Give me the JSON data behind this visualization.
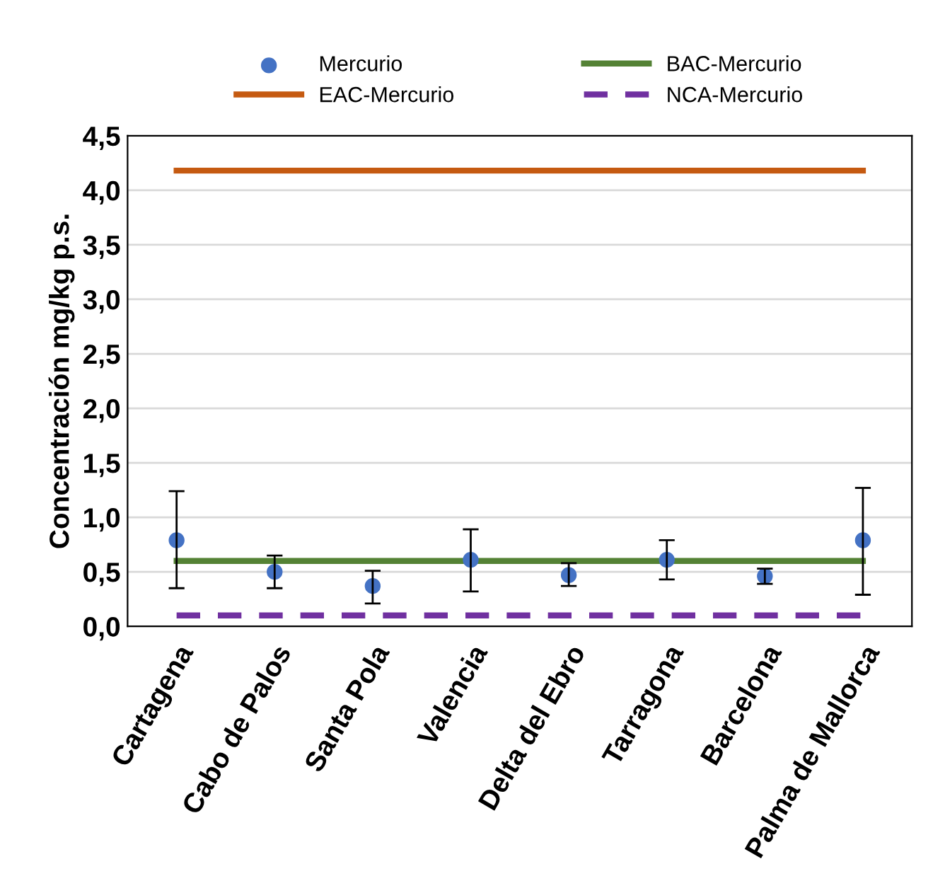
{
  "chart_data": {
    "type": "scatter",
    "ylabel": "Concentración mg/kg p.s.",
    "categories": [
      "Cartagena",
      "Cabo de Palos",
      "Santa Pola",
      "Valencia",
      "Delta del Ebro",
      "Tarragona",
      "Barcelona",
      "Palma de Mallorca"
    ],
    "series": [
      {
        "name": "Mercurio",
        "color": "#4472c4",
        "marker": "circle",
        "values": [
          0.79,
          0.5,
          0.37,
          0.61,
          0.47,
          0.61,
          0.46,
          0.79
        ],
        "errors": [
          [
            0.35,
            1.24
          ],
          [
            0.35,
            0.65
          ],
          [
            0.21,
            0.51
          ],
          [
            0.32,
            0.89
          ],
          [
            0.37,
            0.58
          ],
          [
            0.43,
            0.79
          ],
          [
            0.39,
            0.53
          ],
          [
            0.29,
            1.27
          ]
        ]
      },
      {
        "name": "EAC-Mercurio",
        "type": "line",
        "color": "#c55a11",
        "line_style": "solid",
        "values": [
          4.18,
          4.18,
          4.18,
          4.18,
          4.18,
          4.18,
          4.18,
          4.18
        ]
      },
      {
        "name": "BAC-Mercurio",
        "type": "line",
        "color": "#548235",
        "line_style": "solid",
        "values": [
          0.6,
          0.6,
          0.6,
          0.6,
          0.6,
          0.6,
          0.6,
          0.6
        ]
      },
      {
        "name": "NCA-Mercurio",
        "type": "line",
        "color": "#7030a0",
        "line_style": "dashed",
        "values": [
          0.1,
          0.1,
          0.1,
          0.1,
          0.1,
          0.1,
          0.1,
          0.1
        ]
      }
    ],
    "ylim": [
      0,
      4.5
    ],
    "yticks": [
      {
        "value": 0,
        "label": "0,0"
      },
      {
        "value": 0.5,
        "label": "0,5"
      },
      {
        "value": 1,
        "label": "1,0"
      },
      {
        "value": 1.5,
        "label": "1,5"
      },
      {
        "value": 2,
        "label": "2,0"
      },
      {
        "value": 2.5,
        "label": "2,5"
      },
      {
        "value": 3,
        "label": "3,0"
      },
      {
        "value": 3.5,
        "label": "3,5"
      },
      {
        "value": 4,
        "label": "4,0"
      },
      {
        "value": 4.5,
        "label": "4,5"
      }
    ],
    "grid": "y",
    "legend": "top"
  }
}
